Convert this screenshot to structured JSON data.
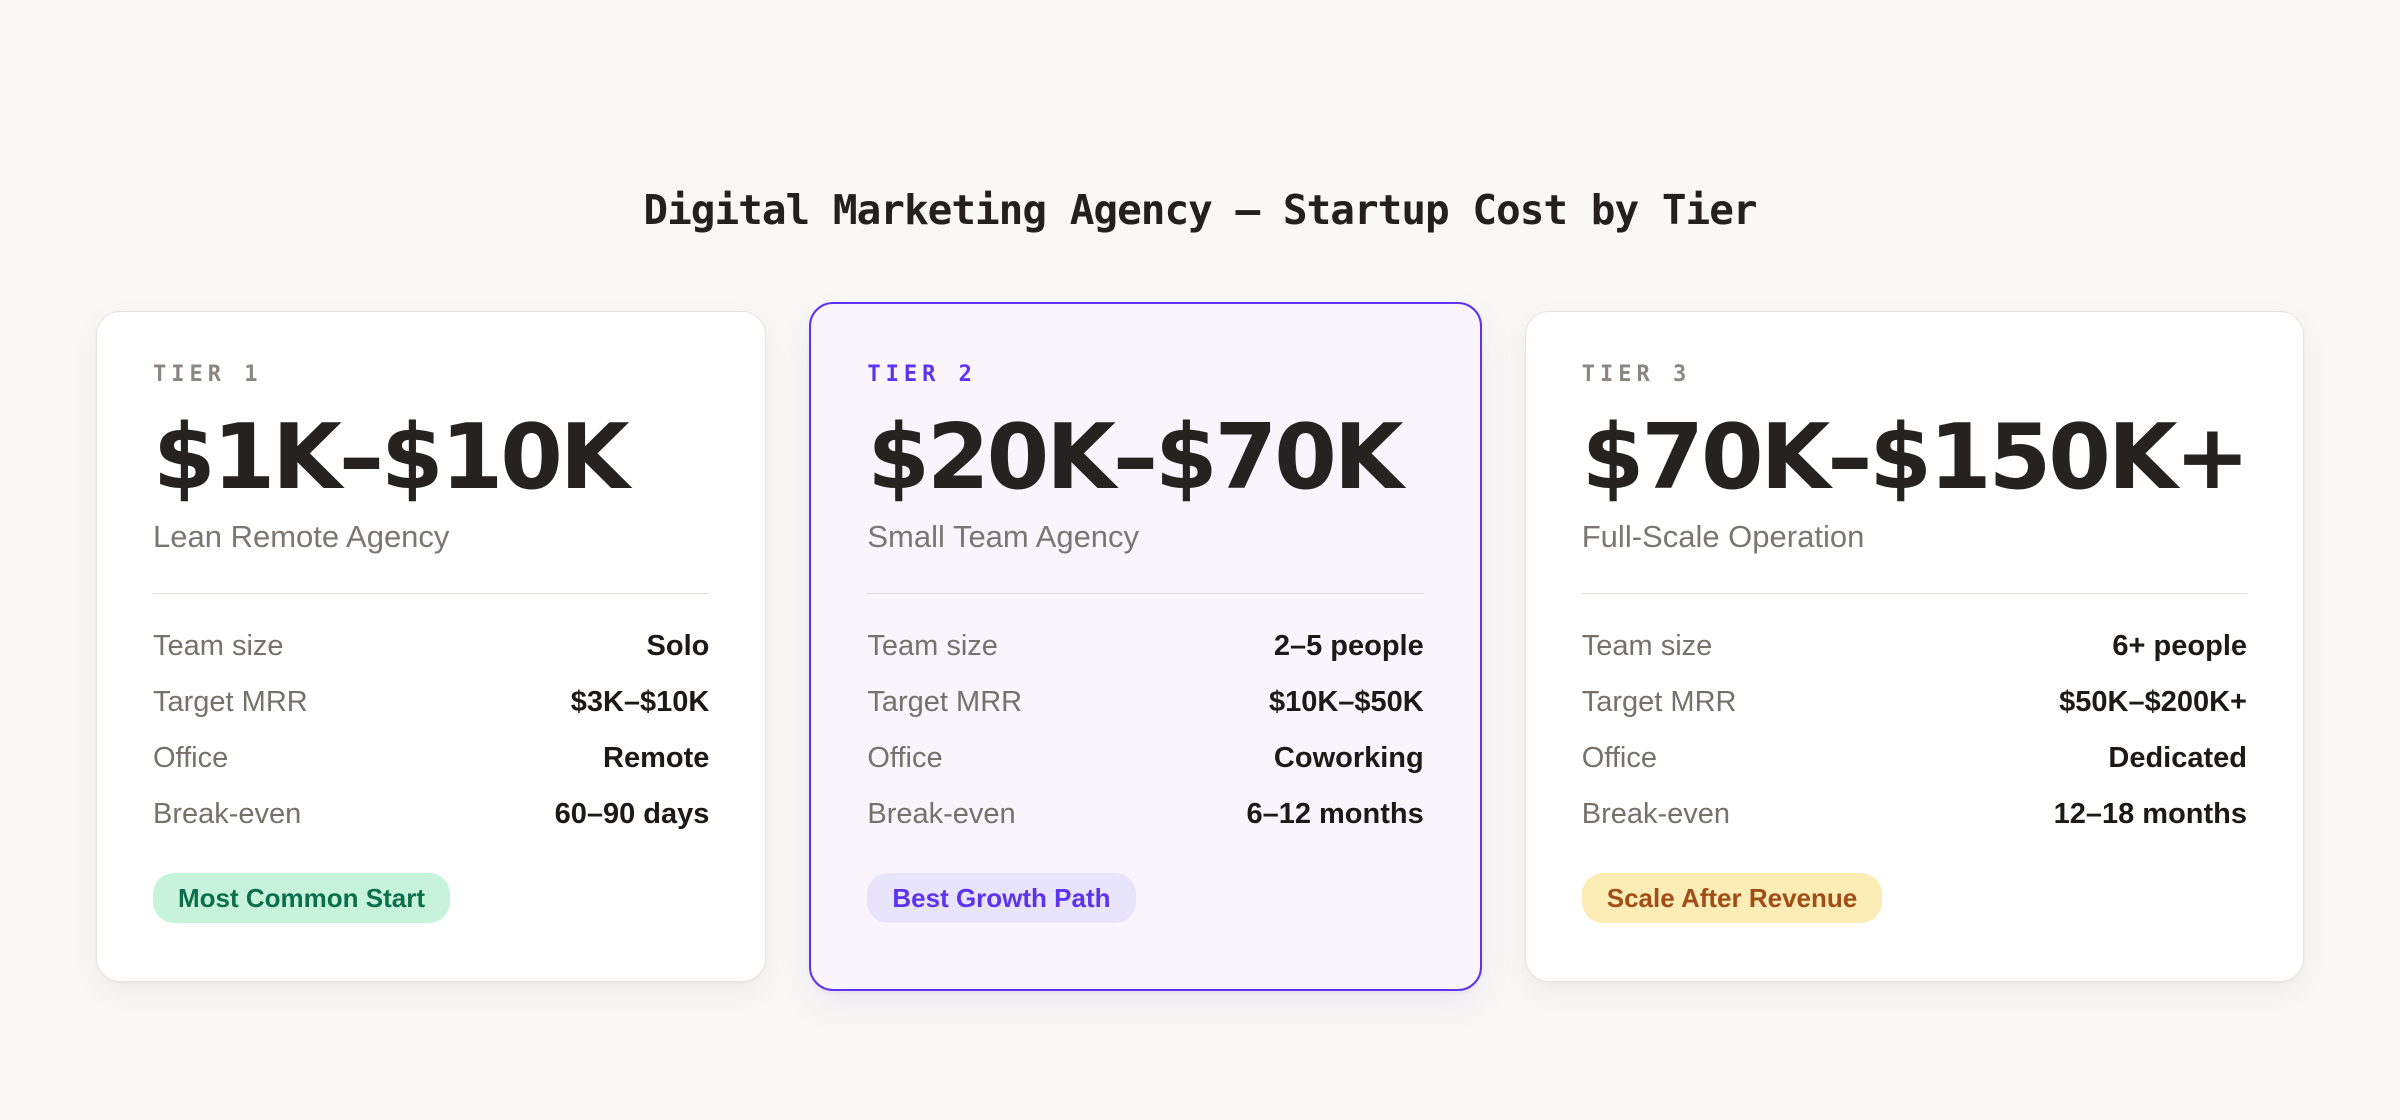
{
  "title": "Digital Marketing Agency — Startup Cost by Tier",
  "colors": {
    "page_background": "#f9f8f5",
    "accent_purple": "#5b33f0",
    "badge_green_bg": "#c8f3db",
    "badge_green_text": "#0c6f4c",
    "badge_purple_bg": "#e8e4fc",
    "badge_purple_text": "#5b33f0",
    "badge_yellow_bg": "#fbedb5",
    "badge_yellow_text": "#a04d18"
  },
  "cards": [
    {
      "tier_label": "TIER 1",
      "price_range": "$1K–$10K",
      "subtitle": "Lean Remote Agency",
      "rows": [
        {
          "label": "Team size",
          "value": "Solo"
        },
        {
          "label": "Target MRR",
          "value": "$3K–$10K"
        },
        {
          "label": "Office",
          "value": "Remote"
        },
        {
          "label": "Break-even",
          "value": "60–90 days"
        }
      ],
      "badge": "Most Common Start"
    },
    {
      "tier_label": "TIER 2",
      "price_range": "$20K–$70K",
      "subtitle": "Small Team Agency",
      "rows": [
        {
          "label": "Team size",
          "value": "2–5 people"
        },
        {
          "label": "Target MRR",
          "value": "$10K–$50K"
        },
        {
          "label": "Office",
          "value": "Coworking"
        },
        {
          "label": "Break-even",
          "value": "6–12 months"
        }
      ],
      "badge": "Best Growth Path"
    },
    {
      "tier_label": "TIER 3",
      "price_range": "$70K–$150K+",
      "subtitle": "Full-Scale Operation",
      "rows": [
        {
          "label": "Team size",
          "value": "6+ people"
        },
        {
          "label": "Target MRR",
          "value": "$50K–$200K+"
        },
        {
          "label": "Office",
          "value": "Dedicated"
        },
        {
          "label": "Break-even",
          "value": "12–18 months"
        }
      ],
      "badge": "Scale After Revenue"
    }
  ]
}
